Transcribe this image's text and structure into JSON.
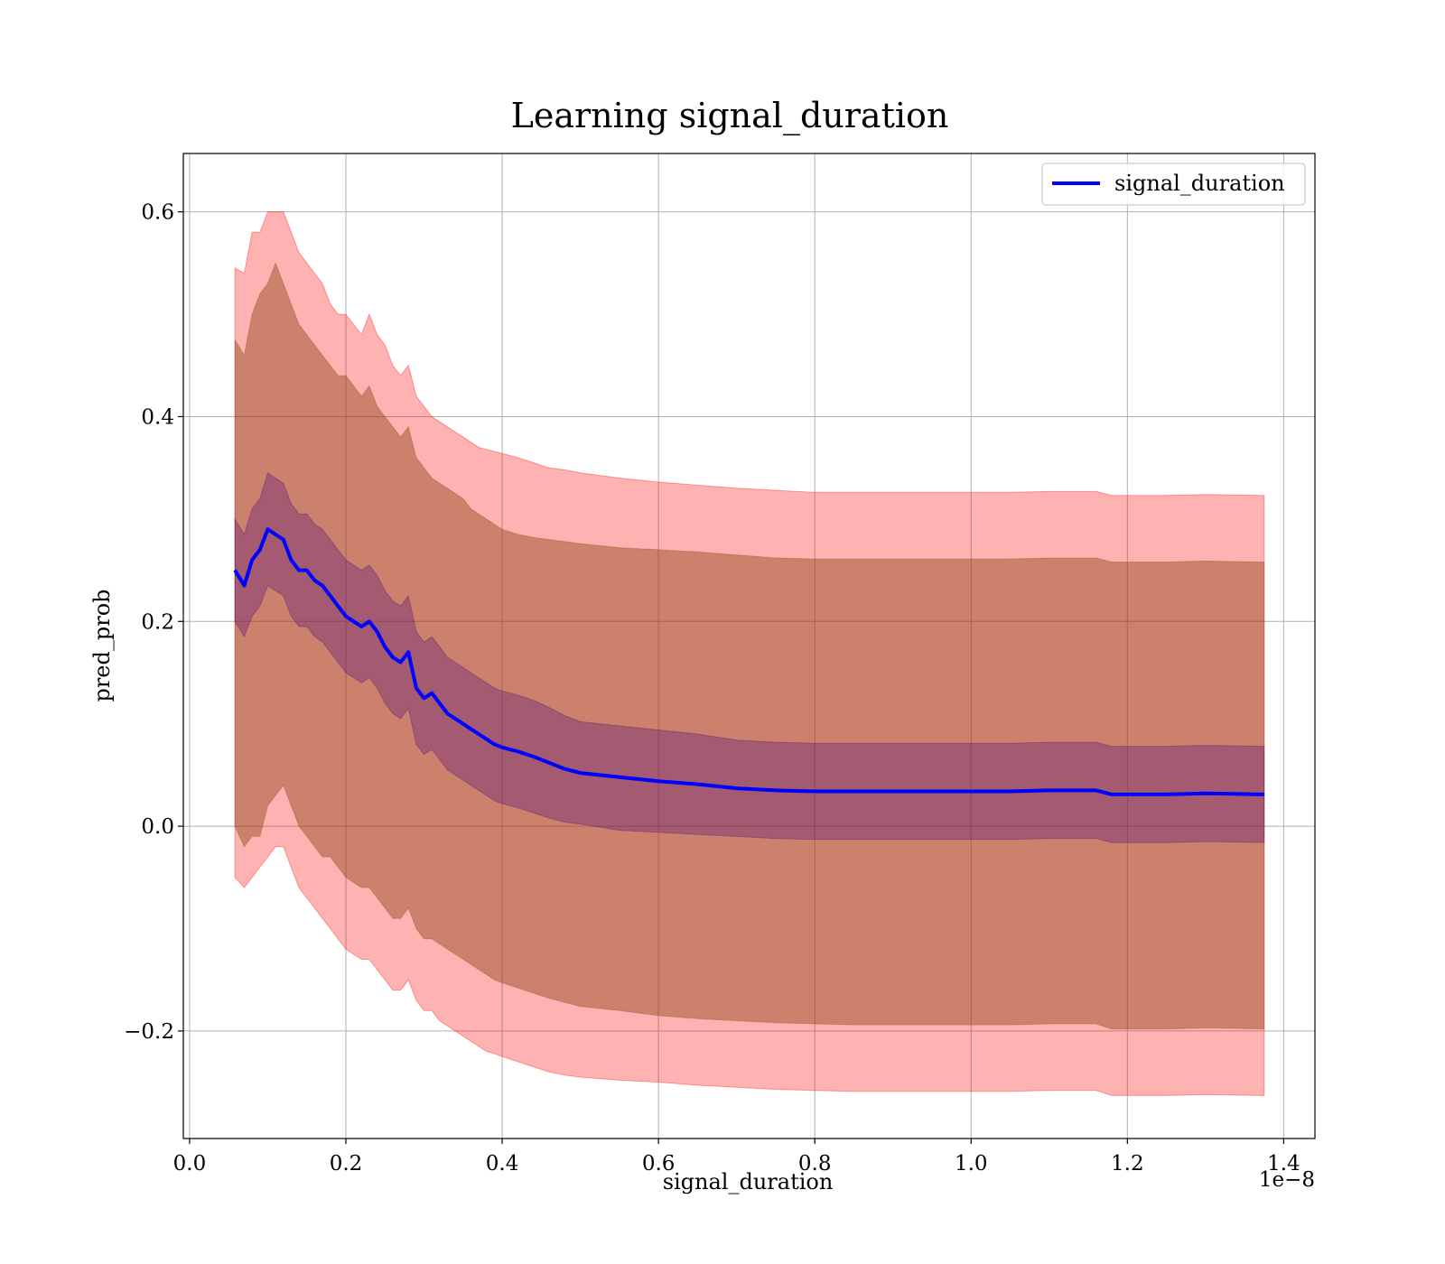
{
  "chart_data": {
    "type": "line",
    "title": "Learning signal_duration",
    "xlabel": "signal_duration",
    "ylabel": "pred_prob",
    "x_offset_text": "1e−8",
    "xlim": [
      -0.008,
      1.44
    ],
    "ylim": [
      -0.305,
      0.657
    ],
    "x_unit_note": "x values are in units of 1e-8",
    "xticks": [
      0.0,
      0.2,
      0.4,
      0.6,
      0.8,
      1.0,
      1.2,
      1.4
    ],
    "xtick_labels": [
      "0.0",
      "0.2",
      "0.4",
      "0.6",
      "0.8",
      "1.0",
      "1.2",
      "1.4"
    ],
    "yticks": [
      -0.2,
      0.0,
      0.2,
      0.4,
      0.6
    ],
    "ytick_labels": [
      "−0.2",
      "0.0",
      "0.2",
      "0.4",
      "0.6"
    ],
    "grid": true,
    "legend_position": "top-right",
    "series": [
      {
        "name": "signal_duration",
        "color": "#0000ff",
        "x": [
          0.058,
          0.07,
          0.08,
          0.09,
          0.1,
          0.11,
          0.12,
          0.13,
          0.14,
          0.15,
          0.16,
          0.17,
          0.18,
          0.19,
          0.2,
          0.21,
          0.22,
          0.23,
          0.24,
          0.25,
          0.26,
          0.27,
          0.28,
          0.29,
          0.3,
          0.31,
          0.32,
          0.33,
          0.34,
          0.35,
          0.36,
          0.37,
          0.38,
          0.39,
          0.4,
          0.42,
          0.44,
          0.46,
          0.48,
          0.5,
          0.55,
          0.6,
          0.65,
          0.7,
          0.75,
          0.8,
          0.85,
          0.9,
          0.95,
          1.0,
          1.05,
          1.1,
          1.16,
          1.18,
          1.2,
          1.25,
          1.3,
          1.375
        ],
        "y": [
          0.25,
          0.235,
          0.26,
          0.27,
          0.29,
          0.285,
          0.28,
          0.26,
          0.25,
          0.25,
          0.24,
          0.235,
          0.225,
          0.215,
          0.205,
          0.2,
          0.195,
          0.2,
          0.19,
          0.175,
          0.165,
          0.16,
          0.17,
          0.135,
          0.125,
          0.13,
          0.12,
          0.11,
          0.105,
          0.1,
          0.095,
          0.09,
          0.085,
          0.08,
          0.077,
          0.073,
          0.068,
          0.062,
          0.056,
          0.052,
          0.048,
          0.044,
          0.041,
          0.037,
          0.035,
          0.034,
          0.034,
          0.034,
          0.034,
          0.034,
          0.034,
          0.035,
          0.035,
          0.031,
          0.031,
          0.031,
          0.032,
          0.031
        ],
        "inner_band": {
          "lower": [
            0.2,
            0.185,
            0.205,
            0.215,
            0.235,
            0.23,
            0.225,
            0.205,
            0.195,
            0.195,
            0.185,
            0.18,
            0.17,
            0.16,
            0.15,
            0.145,
            0.14,
            0.145,
            0.135,
            0.12,
            0.11,
            0.105,
            0.115,
            0.08,
            0.07,
            0.075,
            0.065,
            0.055,
            0.05,
            0.045,
            0.04,
            0.035,
            0.03,
            0.025,
            0.022,
            0.018,
            0.013,
            0.008,
            0.004,
            0.002,
            -0.004,
            -0.006,
            -0.008,
            -0.01,
            -0.012,
            -0.013,
            -0.013,
            -0.013,
            -0.013,
            -0.013,
            -0.013,
            -0.012,
            -0.012,
            -0.016,
            -0.016,
            -0.016,
            -0.015,
            -0.016
          ],
          "upper": [
            0.3,
            0.285,
            0.31,
            0.32,
            0.345,
            0.34,
            0.335,
            0.315,
            0.305,
            0.305,
            0.295,
            0.29,
            0.28,
            0.27,
            0.26,
            0.255,
            0.25,
            0.255,
            0.245,
            0.23,
            0.22,
            0.215,
            0.225,
            0.19,
            0.18,
            0.185,
            0.175,
            0.165,
            0.16,
            0.155,
            0.15,
            0.145,
            0.14,
            0.135,
            0.132,
            0.128,
            0.123,
            0.116,
            0.108,
            0.102,
            0.098,
            0.094,
            0.09,
            0.084,
            0.082,
            0.081,
            0.081,
            0.081,
            0.081,
            0.081,
            0.081,
            0.082,
            0.082,
            0.078,
            0.078,
            0.078,
            0.079,
            0.078
          ]
        },
        "middle_band": {
          "lower": [
            0.0,
            -0.02,
            -0.01,
            -0.01,
            0.02,
            0.03,
            0.04,
            0.02,
            0.0,
            -0.01,
            -0.02,
            -0.03,
            -0.03,
            -0.04,
            -0.05,
            -0.055,
            -0.06,
            -0.06,
            -0.07,
            -0.08,
            -0.09,
            -0.09,
            -0.08,
            -0.1,
            -0.11,
            -0.11,
            -0.115,
            -0.12,
            -0.125,
            -0.13,
            -0.135,
            -0.14,
            -0.145,
            -0.15,
            -0.153,
            -0.158,
            -0.163,
            -0.168,
            -0.172,
            -0.176,
            -0.18,
            -0.185,
            -0.188,
            -0.19,
            -0.192,
            -0.193,
            -0.194,
            -0.194,
            -0.194,
            -0.194,
            -0.194,
            -0.193,
            -0.193,
            -0.198,
            -0.198,
            -0.198,
            -0.197,
            -0.198
          ],
          "upper": [
            0.475,
            0.46,
            0.5,
            0.52,
            0.53,
            0.55,
            0.53,
            0.51,
            0.49,
            0.48,
            0.47,
            0.46,
            0.45,
            0.44,
            0.44,
            0.43,
            0.42,
            0.43,
            0.41,
            0.4,
            0.39,
            0.38,
            0.39,
            0.36,
            0.35,
            0.34,
            0.335,
            0.33,
            0.325,
            0.32,
            0.31,
            0.305,
            0.3,
            0.295,
            0.29,
            0.285,
            0.282,
            0.28,
            0.278,
            0.276,
            0.272,
            0.27,
            0.268,
            0.265,
            0.262,
            0.261,
            0.261,
            0.261,
            0.261,
            0.261,
            0.261,
            0.262,
            0.262,
            0.258,
            0.258,
            0.258,
            0.259,
            0.258
          ]
        },
        "outer_band": {
          "lower": [
            -0.05,
            -0.06,
            -0.05,
            -0.04,
            -0.03,
            -0.02,
            -0.02,
            -0.04,
            -0.06,
            -0.07,
            -0.08,
            -0.09,
            -0.1,
            -0.11,
            -0.12,
            -0.125,
            -0.13,
            -0.13,
            -0.14,
            -0.15,
            -0.16,
            -0.16,
            -0.15,
            -0.17,
            -0.18,
            -0.18,
            -0.19,
            -0.195,
            -0.2,
            -0.205,
            -0.21,
            -0.215,
            -0.22,
            -0.222,
            -0.225,
            -0.23,
            -0.235,
            -0.24,
            -0.243,
            -0.245,
            -0.248,
            -0.25,
            -0.253,
            -0.255,
            -0.257,
            -0.258,
            -0.259,
            -0.259,
            -0.259,
            -0.259,
            -0.259,
            -0.258,
            -0.258,
            -0.263,
            -0.263,
            -0.263,
            -0.262,
            -0.263
          ],
          "upper": [
            0.545,
            0.54,
            0.58,
            0.58,
            0.6,
            0.6,
            0.6,
            0.58,
            0.56,
            0.55,
            0.54,
            0.53,
            0.51,
            0.5,
            0.5,
            0.49,
            0.48,
            0.5,
            0.48,
            0.47,
            0.45,
            0.44,
            0.45,
            0.42,
            0.41,
            0.4,
            0.395,
            0.39,
            0.385,
            0.38,
            0.375,
            0.37,
            0.368,
            0.366,
            0.364,
            0.36,
            0.355,
            0.35,
            0.348,
            0.345,
            0.34,
            0.336,
            0.333,
            0.33,
            0.328,
            0.326,
            0.326,
            0.326,
            0.326,
            0.326,
            0.326,
            0.327,
            0.327,
            0.323,
            0.323,
            0.323,
            0.324,
            0.323
          ]
        }
      }
    ],
    "colors": {
      "line": "#0000ff",
      "outer_band": "#ff0000",
      "middle_band": "#8b4513",
      "inner_band": "#4b0082",
      "grid": "#b0b0b0"
    }
  }
}
